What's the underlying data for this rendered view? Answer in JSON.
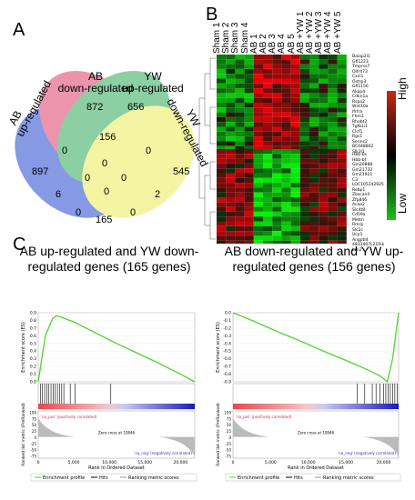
{
  "panels": {
    "a": "A",
    "b": "B",
    "c": "C"
  },
  "venn": {
    "labels": {
      "ab_up": "AB\nup-regulated",
      "ab_down": "AB\ndown-regulated",
      "yw_up": "YW\nup-regulated",
      "yw_down": "YW\ndown-regulated"
    },
    "counts": {
      "ab_up_only": "897",
      "ab_down_only": "872",
      "yw_up_only": "656",
      "yw_down_only": "545",
      "abup_abdown": "0",
      "abdown_ywup": "156",
      "ywup_ywdown": "0",
      "abup_ywdown": "165",
      "abup_ywup": "6",
      "abdown_ywdown": "2",
      "center_top": "0",
      "center_left": "0",
      "center_right": "0",
      "center": "0",
      "left_lower": "0",
      "right_lower": "0"
    },
    "colors": {
      "ab_up": "#3b5bd6",
      "ab_down": "#e2547a",
      "yw_up": "#46b36a",
      "yw_down": "#f0ee6a"
    }
  },
  "heatmap": {
    "columns": [
      "Sham 1",
      "Sham 2",
      "Sham 3",
      "Sham 4",
      "AB 1",
      "AB 2",
      "AB 3",
      "AB 4",
      "AB 5",
      "AB +YW 1",
      "AB +YW 2",
      "AB +YW 3",
      "AB +YW 4",
      "AB +YW 5"
    ],
    "genes_top": [
      "Baiap2l1",
      "Gfi1223",
      "Tmprss7",
      "Olfr473",
      "Cxcl1",
      "Ostrp3",
      "Gfi1156",
      "Akap4",
      "Cdkn1a",
      "Rspo2",
      "Wnt10a",
      "Ifrfra",
      "Fhm1",
      "Rhobt2",
      "Tgfb1i1",
      "Clcf1",
      "Rgs1",
      "Serinc2",
      "BC048802",
      "Slk3l1"
    ],
    "genes_bottom": [
      "Hbb-bs",
      "Hbb-bt",
      "Gm20888",
      "Gm21732",
      "Gm21921",
      "C3",
      "LOC105242925",
      "Rebp1",
      "Zbscan4",
      "Zfp846",
      "Acaa2",
      "Slc4t8",
      "Cd59a",
      "Metrn",
      "Rmrp",
      "Slc2c",
      "Ucp1",
      "Angptl4",
      "4833407L21Rik",
      "Lcn2"
    ],
    "legend": {
      "high": "High",
      "low": "Low"
    }
  },
  "gsea": [
    {
      "title": "AB up-regulated and YW down-regulated genes (165 genes)",
      "ylabel_top": "Enrichment score (ES)",
      "ylabel_bottom": "Ranked list metric (PreRanked)",
      "xlabel": "Rank in Ordered Dataset",
      "pos_label": "'na_pos' (positively correlated)",
      "neg_label": "'na_neg' (negatively correlated)",
      "zero_cross": "Zero cross at 10846",
      "y_ticks": [
        "0.9",
        "0.8",
        "0.7",
        "0.6",
        "0.5",
        "0.4",
        "0.3",
        "0.2",
        "0.1",
        "0.0"
      ],
      "x_ticks": [
        "0",
        "5,000",
        "10,000",
        "15,000",
        "20,000"
      ],
      "metric_ticks": [
        "100",
        "75",
        "50",
        "25",
        "0",
        "-25",
        "-50",
        "-75"
      ],
      "legend": [
        "Enrichment profile",
        "Hits",
        "Ranking metric scores"
      ]
    },
    {
      "title": "AB down-regulated and YW up-regulated genes (156 genes)",
      "ylabel_top": "Enrichment score (ES)",
      "ylabel_bottom": "Ranked list metric (PreRanked)",
      "xlabel": "Rank in Ordered Dataset",
      "pos_label": "'na_pos' (positively correlated)",
      "neg_label": "'na_neg' (negatively correlated)",
      "zero_cross": "Zero cross at 10846",
      "y_ticks": [
        "0.0",
        "-0.1",
        "-0.2",
        "-0.3",
        "-0.4",
        "-0.5",
        "-0.6",
        "-0.7",
        "-0.8",
        "-0.9"
      ],
      "x_ticks": [
        "0",
        "5,000",
        "10,000",
        "15,000",
        "20,000"
      ],
      "metric_ticks": [
        "100",
        "75",
        "50",
        "25",
        "0",
        "-25",
        "-50",
        "-75"
      ],
      "legend": [
        "Enrichment profile",
        "Hits",
        "Ranking metric scores"
      ]
    }
  ],
  "chart_data": [
    {
      "type": "line",
      "title": "AB up-regulated and YW down-regulated genes (165 genes)",
      "xlabel": "Rank in Ordered Dataset",
      "ylabel": "Enrichment score (ES)",
      "x": [
        0,
        1000,
        2000,
        2500,
        3000,
        5000,
        8000,
        11000,
        14000,
        17000,
        20000,
        22000
      ],
      "series": [
        {
          "name": "Enrichment profile",
          "values": [
            0.0,
            0.6,
            0.82,
            0.86,
            0.85,
            0.78,
            0.64,
            0.5,
            0.37,
            0.24,
            0.1,
            0.0
          ]
        }
      ],
      "hits_x": [
        300,
        600,
        900,
        1200,
        1500,
        1800,
        2100,
        2400,
        2700,
        3000,
        3300,
        3600,
        4500,
        5200,
        10200
      ],
      "xlim": [
        0,
        22000
      ],
      "ylim": [
        0,
        0.9
      ]
    },
    {
      "type": "line",
      "title": "AB down-regulated and YW up-regulated genes (156 genes)",
      "xlabel": "Rank in Ordered Dataset",
      "ylabel": "Enrichment score (ES)",
      "x": [
        0,
        3000,
        6000,
        9000,
        12000,
        15000,
        18000,
        19500,
        20500,
        21200,
        22000
      ],
      "series": [
        {
          "name": "Enrichment profile",
          "values": [
            0.0,
            -0.12,
            -0.25,
            -0.37,
            -0.5,
            -0.62,
            -0.75,
            -0.82,
            -0.9,
            -0.6,
            0.0
          ]
        }
      ],
      "hits_x": [
        16500,
        17500,
        18500,
        19000,
        19500,
        20000,
        20300,
        20600,
        20900,
        21200,
        21500,
        21800
      ],
      "xlim": [
        0,
        22000
      ],
      "ylim": [
        -0.9,
        0
      ]
    }
  ]
}
